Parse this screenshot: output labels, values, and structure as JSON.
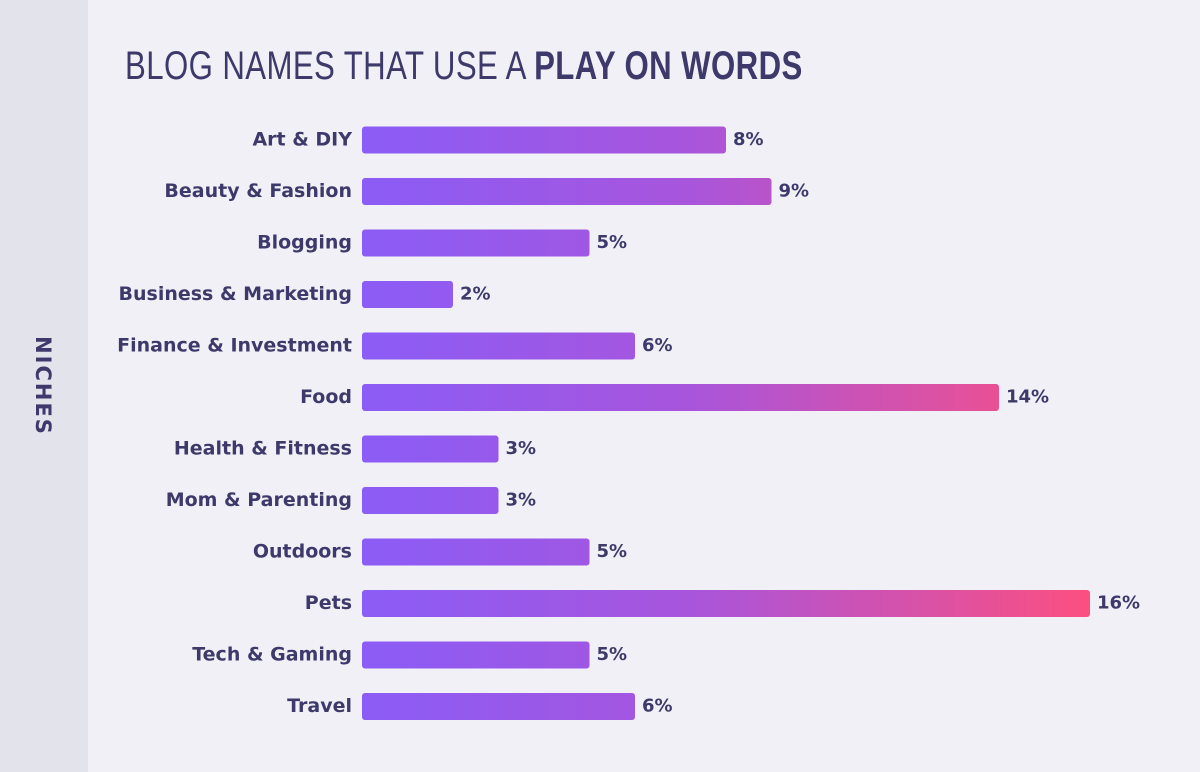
{
  "title": {
    "prefix": "BLOG NAMES THAT USE A ",
    "emphasis": "PLAY ON WORDS"
  },
  "colors": {
    "bar_start": "#8b5cf6",
    "bar_mid": "#a855dc",
    "bar_end": "#fc4f80",
    "text": "#3d3a6b",
    "background": "#f0f0f6",
    "side_strip": "#e3e3ec"
  },
  "chart_data": {
    "type": "bar",
    "orientation": "horizontal",
    "ylabel": "NICHES",
    "xlabel": "",
    "xlim": [
      0,
      16
    ],
    "grid": false,
    "legend": "none",
    "categories": [
      "Art & DIY",
      "Beauty & Fashion",
      "Blogging",
      "Business & Marketing",
      "Finance & Investment",
      "Food",
      "Health & Fitness",
      "Mom & Parenting",
      "Outdoors",
      "Pets",
      "Tech & Gaming",
      "Travel"
    ],
    "values": [
      8,
      9,
      5,
      2,
      6,
      14,
      3,
      3,
      5,
      16,
      5,
      6
    ],
    "value_labels": [
      "8%",
      "9%",
      "5%",
      "2%",
      "6%",
      "14%",
      "3%",
      "3%",
      "5%",
      "16%",
      "5%",
      "6%"
    ]
  }
}
